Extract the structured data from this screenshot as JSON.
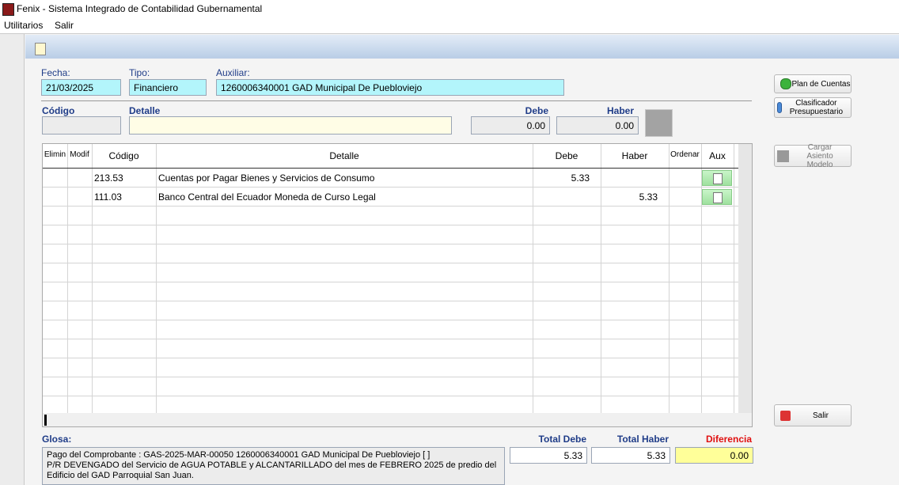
{
  "window": {
    "title": "Fenix - Sistema Integrado de Contabilidad Gubernamental",
    "menu": [
      "Utilitarios",
      "Salir"
    ]
  },
  "form": {
    "fecha": {
      "label": "Fecha:",
      "value": "21/03/2025"
    },
    "tipo": {
      "label": "Tipo:",
      "value": "Financiero"
    },
    "auxiliar": {
      "label": "Auxiliar:",
      "value": "1260006340001  GAD Municipal De Puebloviejo"
    },
    "codigo": {
      "label": "Código"
    },
    "detalle": {
      "label": "Detalle"
    },
    "debe": {
      "label": "Debe",
      "value": "0.00"
    },
    "haber": {
      "label": "Haber",
      "value": "0.00"
    }
  },
  "buttons": [
    "Plan de Cuentas",
    "Clasificador Presupuestario",
    "Cargar Asiento Modelo",
    "Salir"
  ],
  "grid": {
    "columns": [
      "Elimin",
      "Modif",
      "Código",
      "Detalle",
      "Debe",
      "Haber",
      "Ordenar",
      "Aux"
    ],
    "rows": [
      {
        "codigo": "213.53",
        "detalle": "Cuentas por Pagar Bienes y Servicios de Consumo",
        "debe": "5.33"
      },
      {
        "codigo": "111.03",
        "detalle": "Banco Central del Ecuador Moneda de Curso Legal",
        "haber": "5.33"
      }
    ]
  },
  "glosa": {
    "label": "Glosa:",
    "lines": [
      "Pago del Comprobante : GAS-2025-MAR-00050  1260006340001 GAD Municipal De Puebloviejo   [ ]",
      "P/R DEVENGADO del Servicio de AGUA POTABLE y ALCANTARILLADO del mes de FEBRERO 2025 de predio del",
      "Edificio del GAD Parroquial San Juan."
    ]
  },
  "totals": {
    "total_debe": {
      "label": "Total Debe",
      "value": "5.33"
    },
    "total_haber": {
      "label": "Total Haber",
      "value": "5.33"
    },
    "diferencia": {
      "label": "Diferencia",
      "value": "0.00"
    }
  }
}
